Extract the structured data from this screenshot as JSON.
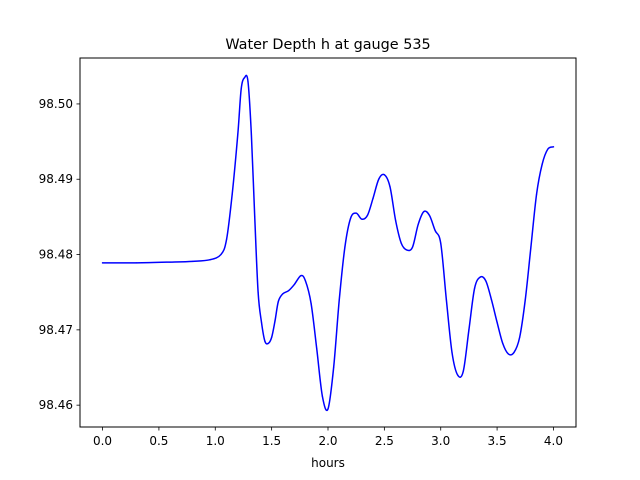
{
  "chart_data": {
    "type": "line",
    "title": "Water Depth h at gauge 535",
    "xlabel": "hours",
    "ylabel": "",
    "xlim": [
      -0.2,
      4.2
    ],
    "ylim": [
      98.4571,
      98.5061
    ],
    "xticks": [
      0.0,
      0.5,
      1.0,
      1.5,
      2.0,
      2.5,
      3.0,
      3.5,
      4.0
    ],
    "xtick_labels": [
      "0.0",
      "0.5",
      "1.0",
      "1.5",
      "2.0",
      "2.5",
      "3.0",
      "3.5",
      "4.0"
    ],
    "yticks": [
      98.46,
      98.47,
      98.48,
      98.49,
      98.5
    ],
    "ytick_labels": [
      "98.46",
      "98.47",
      "98.48",
      "98.49",
      "98.50"
    ],
    "grid": false,
    "series": [
      {
        "color": "#0000ff",
        "x": [
          0.0,
          0.3,
          0.6,
          0.8,
          0.95,
          1.05,
          1.1,
          1.15,
          1.2,
          1.23,
          1.26,
          1.29,
          1.32,
          1.35,
          1.38,
          1.41,
          1.44,
          1.47,
          1.5,
          1.53,
          1.56,
          1.6,
          1.65,
          1.7,
          1.76,
          1.8,
          1.85,
          1.9,
          1.95,
          2.0,
          2.05,
          2.1,
          2.15,
          2.2,
          2.25,
          2.3,
          2.35,
          2.4,
          2.45,
          2.5,
          2.55,
          2.6,
          2.65,
          2.7,
          2.75,
          2.8,
          2.85,
          2.9,
          2.95,
          3.0,
          3.05,
          3.1,
          3.15,
          3.2,
          3.25,
          3.3,
          3.35,
          3.4,
          3.45,
          3.5,
          3.55,
          3.6,
          3.65,
          3.7,
          3.75,
          3.8,
          3.85,
          3.9,
          3.95,
          4.0
        ],
        "y": [
          98.4789,
          98.4789,
          98.479,
          98.4791,
          98.4793,
          98.48,
          98.482,
          98.488,
          98.496,
          98.502,
          98.5035,
          98.503,
          98.496,
          98.485,
          98.475,
          98.471,
          98.4685,
          98.4682,
          98.469,
          98.4712,
          98.4738,
          98.4748,
          98.4752,
          98.476,
          98.4772,
          98.4765,
          98.4735,
          98.4675,
          98.4612,
          98.4595,
          98.465,
          98.474,
          98.481,
          98.4848,
          98.4855,
          98.4847,
          98.4852,
          98.4875,
          98.49,
          98.4906,
          98.489,
          98.4845,
          98.4815,
          98.4806,
          98.481,
          98.484,
          98.4857,
          98.4852,
          98.4832,
          98.4815,
          98.474,
          98.467,
          98.464,
          98.4645,
          98.47,
          98.4755,
          98.477,
          98.4765,
          98.474,
          98.471,
          98.4682,
          98.4668,
          98.467,
          98.469,
          98.474,
          98.481,
          98.488,
          98.492,
          98.494,
          98.4943
        ]
      }
    ]
  }
}
